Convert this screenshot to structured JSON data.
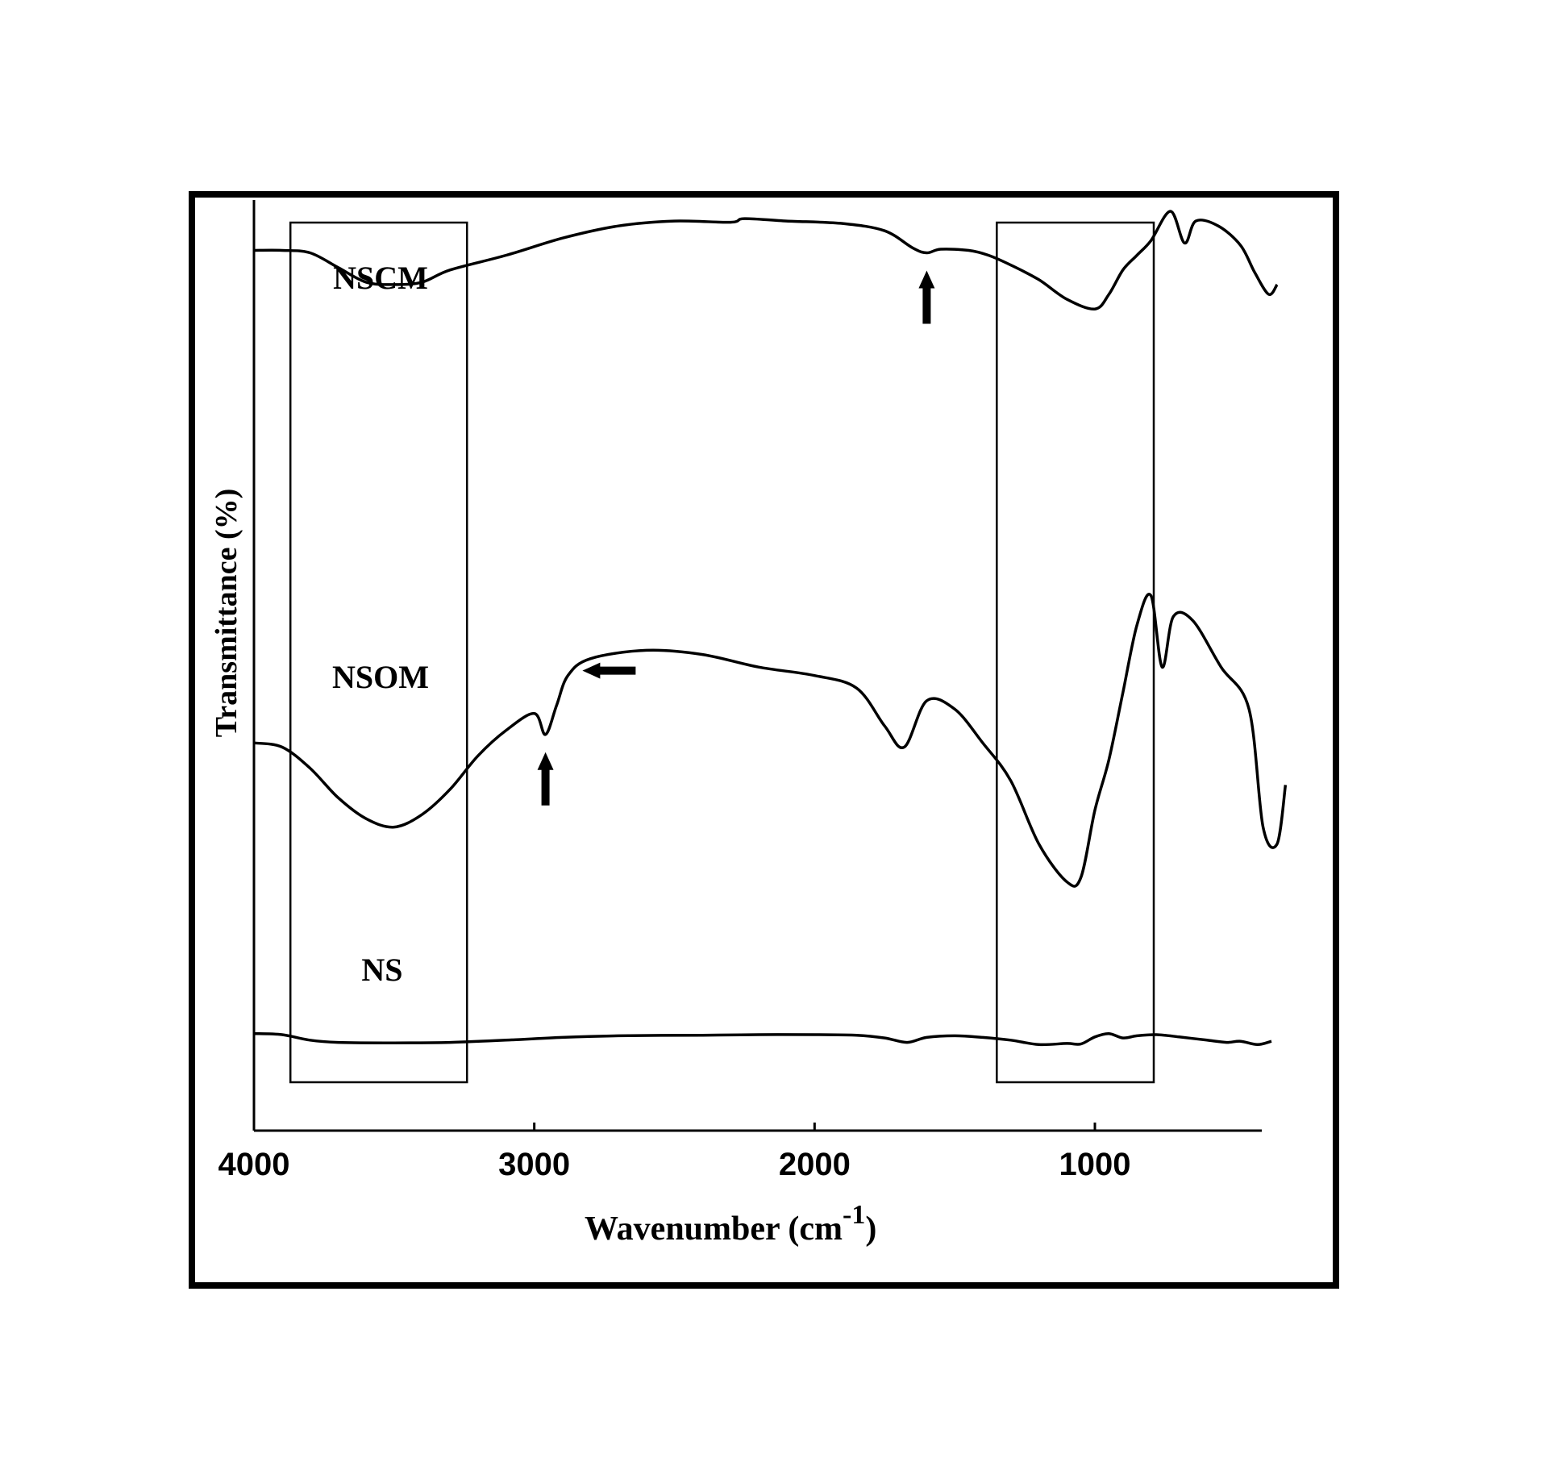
{
  "chart_data": {
    "type": "line",
    "title": "",
    "xlabel": "Wavenumber (cm",
    "xlabel_superscript": "-1",
    "xlabel_close": ")",
    "ylabel": "Transmittance (%)",
    "xlim": [
      4000,
      400
    ],
    "x_reversed": true,
    "x_ticks": [
      4000,
      3000,
      2000,
      1000
    ],
    "x_tick_labels": [
      "4000",
      "3000",
      "2000",
      "1000"
    ],
    "y_units": "relative (offset traces, no printed scale)",
    "grid": false,
    "highlight_regions": [
      {
        "from": 3870,
        "to": 3240
      },
      {
        "from": 1350,
        "to": 790
      }
    ],
    "series": [
      {
        "name": "NSCM",
        "points": [
          [
            4000,
            84
          ],
          [
            3900,
            84
          ],
          [
            3800,
            83
          ],
          [
            3700,
            77
          ],
          [
            3600,
            71
          ],
          [
            3500,
            70
          ],
          [
            3400,
            71
          ],
          [
            3300,
            76
          ],
          [
            3100,
            82
          ],
          [
            2900,
            89
          ],
          [
            2700,
            94
          ],
          [
            2500,
            96
          ],
          [
            2300,
            95.5
          ],
          [
            2250,
            97
          ],
          [
            2100,
            96
          ],
          [
            1900,
            95
          ],
          [
            1750,
            92
          ],
          [
            1650,
            85
          ],
          [
            1600,
            83
          ],
          [
            1550,
            84.5
          ],
          [
            1450,
            84
          ],
          [
            1380,
            82
          ],
          [
            1300,
            78
          ],
          [
            1200,
            72
          ],
          [
            1100,
            64
          ],
          [
            1000,
            60
          ],
          [
            950,
            66
          ],
          [
            900,
            76
          ],
          [
            850,
            82
          ],
          [
            800,
            88
          ],
          [
            730,
            100
          ],
          [
            680,
            87
          ],
          [
            640,
            96
          ],
          [
            560,
            94
          ],
          [
            480,
            86
          ],
          [
            430,
            75
          ],
          [
            380,
            66
          ],
          [
            350,
            70
          ]
        ]
      },
      {
        "name": "NSOM",
        "points": [
          [
            4000,
            40
          ],
          [
            3900,
            39
          ],
          [
            3800,
            34
          ],
          [
            3700,
            27
          ],
          [
            3600,
            22
          ],
          [
            3500,
            20
          ],
          [
            3400,
            23
          ],
          [
            3300,
            29
          ],
          [
            3200,
            37
          ],
          [
            3100,
            43
          ],
          [
            3000,
            47
          ],
          [
            2960,
            42
          ],
          [
            2920,
            49
          ],
          [
            2880,
            56
          ],
          [
            2800,
            60
          ],
          [
            2600,
            62
          ],
          [
            2400,
            61
          ],
          [
            2200,
            58
          ],
          [
            2000,
            56
          ],
          [
            1850,
            53
          ],
          [
            1750,
            44
          ],
          [
            1680,
            39
          ],
          [
            1600,
            50
          ],
          [
            1500,
            48
          ],
          [
            1400,
            40
          ],
          [
            1300,
            31
          ],
          [
            1200,
            16
          ],
          [
            1100,
            7
          ],
          [
            1050,
            8
          ],
          [
            1000,
            24
          ],
          [
            950,
            36
          ],
          [
            900,
            52
          ],
          [
            850,
            68
          ],
          [
            800,
            75
          ],
          [
            760,
            58
          ],
          [
            720,
            70
          ],
          [
            650,
            69
          ],
          [
            550,
            58
          ],
          [
            450,
            48
          ],
          [
            400,
            20
          ],
          [
            350,
            16
          ],
          [
            320,
            30
          ]
        ]
      },
      {
        "name": "NS",
        "points": [
          [
            4000,
            12
          ],
          [
            3900,
            11
          ],
          [
            3800,
            6
          ],
          [
            3700,
            4
          ],
          [
            3500,
            3.5
          ],
          [
            3300,
            4
          ],
          [
            3100,
            6
          ],
          [
            2900,
            8.5
          ],
          [
            2700,
            10
          ],
          [
            2400,
            10.5
          ],
          [
            2200,
            11
          ],
          [
            2000,
            11
          ],
          [
            1850,
            10.5
          ],
          [
            1750,
            8
          ],
          [
            1670,
            4
          ],
          [
            1600,
            8.5
          ],
          [
            1500,
            10
          ],
          [
            1400,
            8.5
          ],
          [
            1300,
            6
          ],
          [
            1200,
            2
          ],
          [
            1100,
            3
          ],
          [
            1050,
            2.5
          ],
          [
            1000,
            9
          ],
          [
            950,
            12
          ],
          [
            900,
            8
          ],
          [
            850,
            10
          ],
          [
            780,
            11
          ],
          [
            700,
            9
          ],
          [
            600,
            6
          ],
          [
            530,
            4
          ],
          [
            480,
            5
          ],
          [
            420,
            2
          ],
          [
            370,
            5
          ]
        ]
      }
    ],
    "annotations": [
      {
        "type": "arrow-up",
        "series": "NSCM",
        "at": 1600
      },
      {
        "type": "arrow-up",
        "series": "NSOM",
        "at": 2960
      },
      {
        "type": "arrow-left",
        "series": "NSOM",
        "at": 2880
      }
    ]
  }
}
